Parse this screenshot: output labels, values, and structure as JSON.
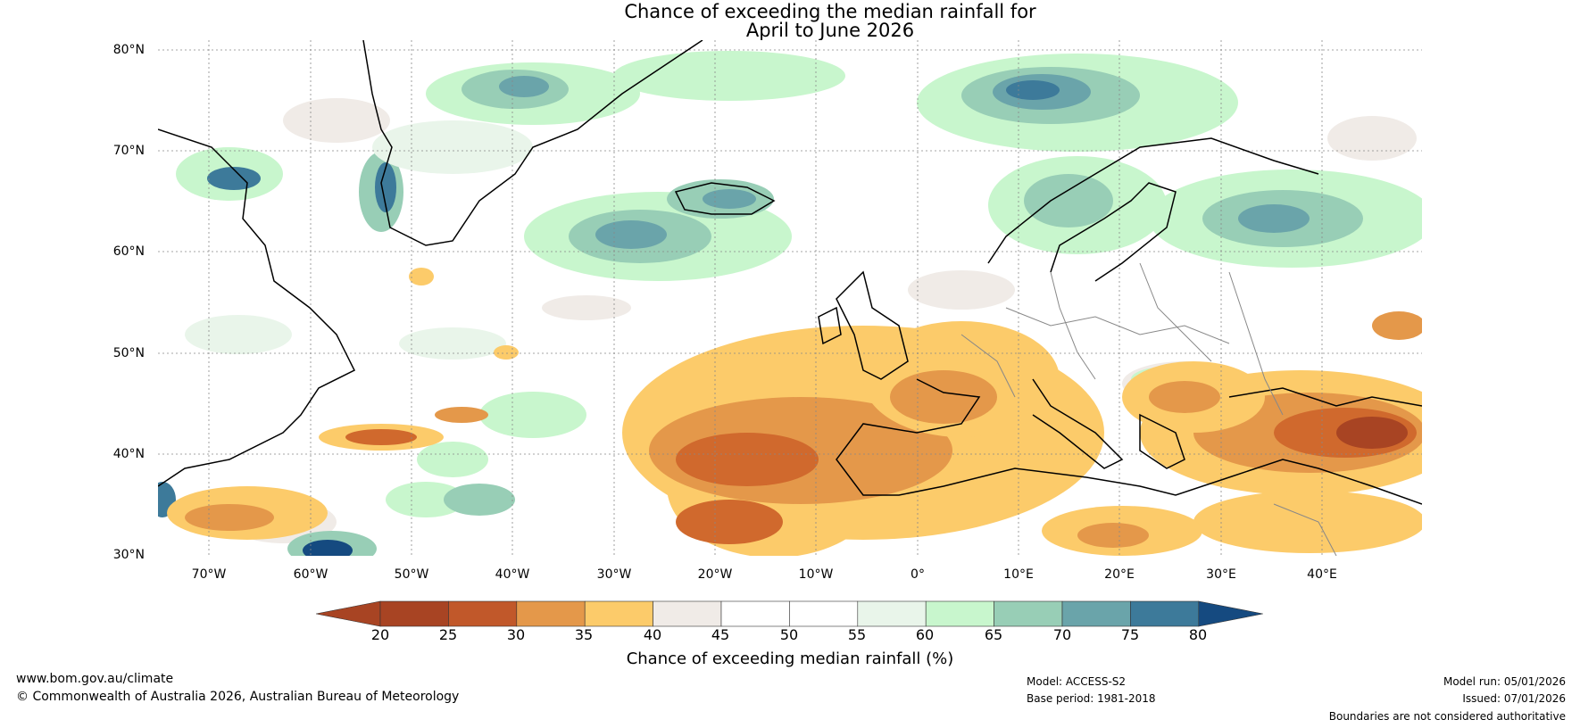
{
  "title": {
    "line1": "Chance of exceeding the median rainfall for",
    "line2": "April to June 2026"
  },
  "map": {
    "lat_labels": [
      "80°N",
      "70°N",
      "60°N",
      "50°N",
      "40°N",
      "30°N"
    ],
    "lon_labels": [
      "70°W",
      "60°W",
      "50°W",
      "40°W",
      "30°W",
      "20°W",
      "10°W",
      "0°",
      "10°E",
      "20°E",
      "30°E",
      "40°E"
    ],
    "region_highlights": {
      "dry_colors": [
        "#a84423",
        "#d0692d",
        "#e4984a",
        "#fccb6a"
      ],
      "wet_colors": [
        "#c8f6cd",
        "#98ceb6",
        "#6aa4aa",
        "#3d7a9a",
        "#154a80"
      ],
      "neutral_colors": [
        "#f0ebe7",
        "#ffffff",
        "#e9f5ea"
      ]
    }
  },
  "legend": {
    "ticks": [
      "20",
      "25",
      "30",
      "35",
      "40",
      "45",
      "50",
      "55",
      "60",
      "65",
      "70",
      "75",
      "80"
    ],
    "colors": [
      "#a84423",
      "#c1582a",
      "#e4984a",
      "#fccb6a",
      "#f0ebe7",
      "#ffffff",
      "#ffffff",
      "#e9f5ea",
      "#c8f6cd",
      "#98ceb6",
      "#6aa4aa",
      "#3d7a9a"
    ],
    "under_color": "#a84423",
    "over_color": "#154a80",
    "label": "Chance of exceeding median rainfall (%)"
  },
  "footer": {
    "website": "www.bom.gov.au/climate",
    "copyright": "© Commonwealth of Australia 2026, Australian Bureau of Meteorology",
    "model": "Model: ACCESS-S2",
    "base_period": "Base period: 1981-2018",
    "model_run": "Model run: 05/01/2026",
    "issued": "Issued: 07/01/2026",
    "disclaimer": "Boundaries are not considered authoritative"
  }
}
